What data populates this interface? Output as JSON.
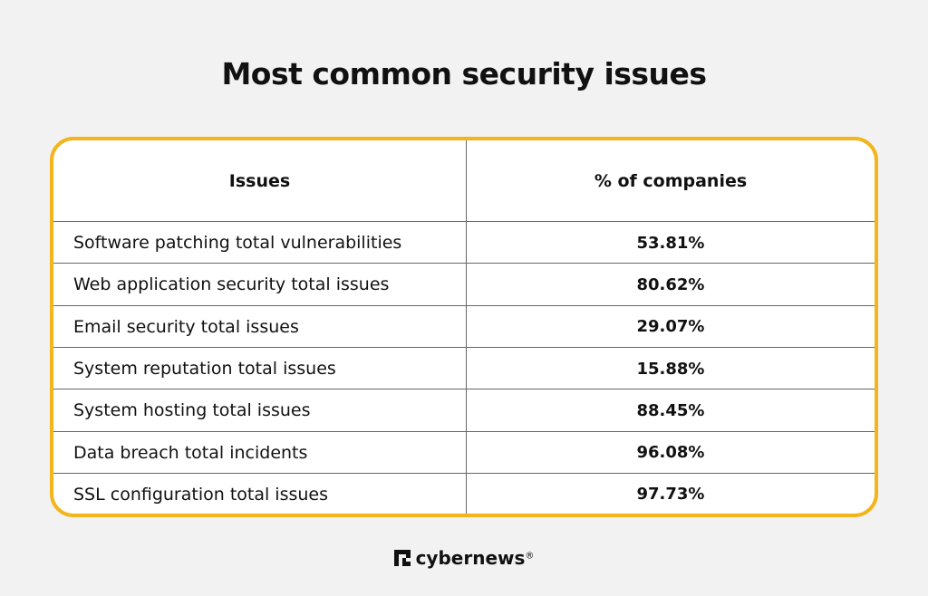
{
  "title": "Most common security issues",
  "table": {
    "header": [
      "Issues",
      "% of companies"
    ],
    "rows": [
      [
        "Software patching total vulnerabilities",
        "53.81%"
      ],
      [
        "Web application security total issues",
        "80.62%"
      ],
      [
        "Email security total issues",
        "29.07%"
      ],
      [
        "System reputation total issues",
        "15.88%"
      ],
      [
        "System hosting total issues",
        "88.45%"
      ],
      [
        "Data breach total incidents",
        "96.08%"
      ],
      [
        "SSL configuration total issues",
        "97.73%"
      ]
    ]
  },
  "footer": {
    "brand": "cybernews",
    "mark": "®"
  }
}
